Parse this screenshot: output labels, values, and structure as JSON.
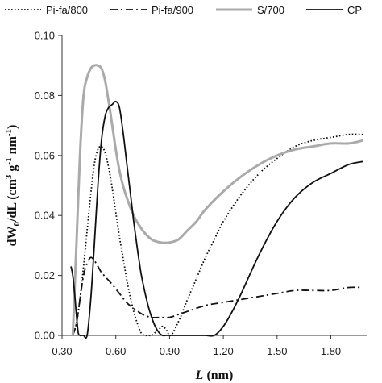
{
  "chart_data": {
    "type": "line",
    "xlabel_main": "L",
    "xlabel_unit": " (nm)",
    "ylabel_main": "dW",
    "ylabel_sub": "0",
    "ylabel_rest": "/dL (cm",
    "ylabel_sup1": "3",
    "ylabel_mid": " g",
    "ylabel_sup2": "-1",
    "ylabel_mid2": " nm",
    "ylabel_sup3": "-1",
    "ylabel_end": ")",
    "xlim": [
      0.3,
      2.0
    ],
    "ylim": [
      0.0,
      0.1
    ],
    "x_ticks": [
      "0.30",
      "0.60",
      "0.90",
      "1.20",
      "1.50",
      "1.80"
    ],
    "x_tick_values": [
      0.3,
      0.6,
      0.9,
      1.2,
      1.5,
      1.8
    ],
    "y_ticks": [
      "0.00",
      "0.02",
      "0.04",
      "0.06",
      "0.08",
      "0.10"
    ],
    "y_tick_values": [
      0.0,
      0.02,
      0.04,
      0.06,
      0.08,
      0.1
    ],
    "legend_position": "top",
    "series": [
      {
        "name": "Pi-fa/800",
        "style": "dotted",
        "color": "#111111",
        "x": [
          0.36,
          0.38,
          0.4,
          0.42,
          0.44,
          0.46,
          0.48,
          0.5,
          0.52,
          0.54,
          0.56,
          0.58,
          0.6,
          0.62,
          0.64,
          0.66,
          0.68,
          0.7,
          0.72,
          0.74,
          0.76,
          0.78,
          0.8,
          0.82,
          0.84,
          0.86,
          0.88,
          0.9,
          0.92,
          0.96,
          1.0,
          1.05,
          1.1,
          1.15,
          1.2,
          1.3,
          1.4,
          1.5,
          1.6,
          1.7,
          1.8,
          1.9,
          1.98
        ],
        "y": [
          0.0,
          0.004,
          0.012,
          0.023,
          0.035,
          0.047,
          0.057,
          0.062,
          0.063,
          0.061,
          0.056,
          0.049,
          0.041,
          0.033,
          0.026,
          0.019,
          0.013,
          0.008,
          0.004,
          0.001,
          0.0,
          0.0,
          0.0,
          0.001,
          0.002,
          0.003,
          0.002,
          0.0,
          0.001,
          0.006,
          0.012,
          0.019,
          0.026,
          0.032,
          0.038,
          0.047,
          0.054,
          0.059,
          0.063,
          0.065,
          0.066,
          0.067,
          0.067
        ]
      },
      {
        "name": "Pi-fa/900",
        "style": "dashdot",
        "color": "#111111",
        "x": [
          0.36,
          0.38,
          0.4,
          0.42,
          0.44,
          0.46,
          0.48,
          0.5,
          0.52,
          0.55,
          0.58,
          0.62,
          0.66,
          0.7,
          0.75,
          0.8,
          0.85,
          0.9,
          0.95,
          1.0,
          1.1,
          1.2,
          1.3,
          1.4,
          1.5,
          1.6,
          1.7,
          1.8,
          1.9,
          1.98
        ],
        "y": [
          0.0,
          0.004,
          0.012,
          0.02,
          0.024,
          0.026,
          0.025,
          0.023,
          0.021,
          0.019,
          0.017,
          0.014,
          0.011,
          0.009,
          0.007,
          0.006,
          0.006,
          0.006,
          0.007,
          0.008,
          0.01,
          0.011,
          0.012,
          0.013,
          0.014,
          0.015,
          0.015,
          0.015,
          0.016,
          0.016
        ]
      },
      {
        "name": "S/700",
        "style": "solid",
        "color": "#aaaaaa",
        "x": [
          0.36,
          0.38,
          0.4,
          0.42,
          0.44,
          0.46,
          0.48,
          0.5,
          0.52,
          0.54,
          0.56,
          0.58,
          0.6,
          0.62,
          0.65,
          0.7,
          0.75,
          0.8,
          0.85,
          0.9,
          0.95,
          1.0,
          1.05,
          1.1,
          1.2,
          1.3,
          1.4,
          1.5,
          1.6,
          1.7,
          1.8,
          1.9,
          1.98
        ],
        "y": [
          0.0,
          0.03,
          0.06,
          0.08,
          0.086,
          0.089,
          0.09,
          0.09,
          0.089,
          0.085,
          0.078,
          0.07,
          0.062,
          0.055,
          0.048,
          0.04,
          0.035,
          0.032,
          0.031,
          0.031,
          0.032,
          0.035,
          0.038,
          0.042,
          0.048,
          0.053,
          0.057,
          0.06,
          0.062,
          0.063,
          0.064,
          0.064,
          0.065
        ]
      },
      {
        "name": "CP",
        "style": "solid",
        "color": "#111111",
        "x": [
          0.35,
          0.36,
          0.37,
          0.38,
          0.39,
          0.4,
          0.41,
          0.42,
          0.44,
          0.46,
          0.48,
          0.5,
          0.52,
          0.54,
          0.56,
          0.58,
          0.6,
          0.62,
          0.64,
          0.66,
          0.68,
          0.7,
          0.72,
          0.74,
          0.76,
          0.78,
          0.8,
          0.82,
          0.84,
          0.86,
          0.88,
          0.9,
          0.95,
          1.0,
          1.05,
          1.1,
          1.15,
          1.2,
          1.25,
          1.3,
          1.4,
          1.5,
          1.6,
          1.7,
          1.8,
          1.9,
          1.98
        ],
        "y": [
          0.023,
          0.02,
          0.014,
          0.007,
          0.001,
          0.0,
          0.0,
          0.0,
          0.0,
          0.012,
          0.03,
          0.05,
          0.065,
          0.073,
          0.076,
          0.077,
          0.078,
          0.076,
          0.068,
          0.058,
          0.048,
          0.038,
          0.029,
          0.021,
          0.015,
          0.01,
          0.006,
          0.003,
          0.001,
          0.0,
          0.0,
          0.0,
          0.0,
          0.0,
          0.0,
          0.0,
          0.0,
          0.003,
          0.008,
          0.014,
          0.027,
          0.038,
          0.046,
          0.051,
          0.054,
          0.057,
          0.058
        ]
      }
    ]
  }
}
